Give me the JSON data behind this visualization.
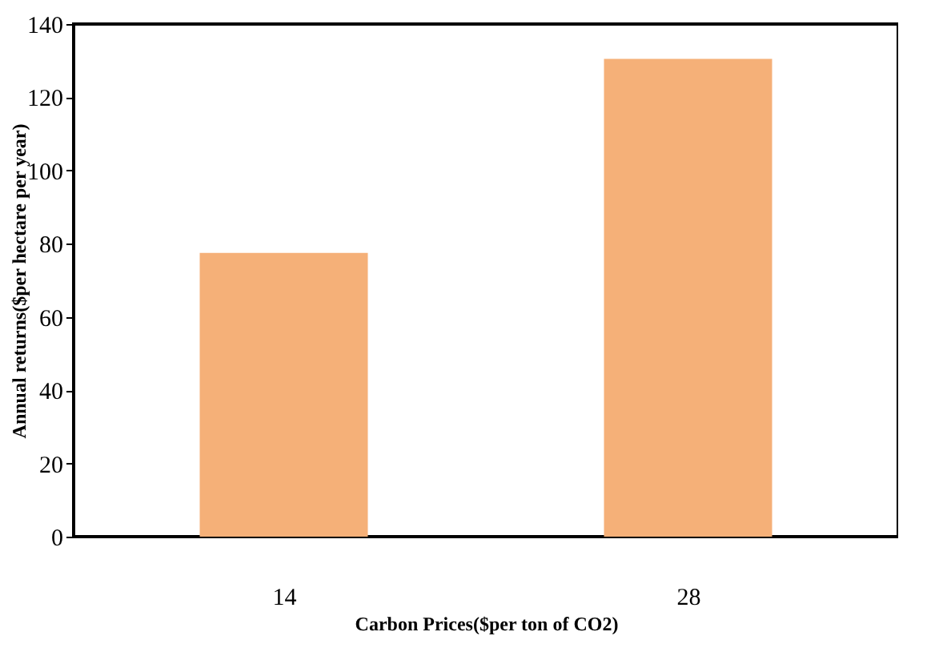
{
  "chart_data": {
    "type": "bar",
    "categories": [
      "14",
      "28"
    ],
    "values": [
      77.5,
      130.5
    ],
    "color": "#f5b078",
    "xlabel": "Carbon Prices($per ton of CO2)",
    "ylabel": "Annual returns($per hectare per year)",
    "ylim": [
      0,
      140
    ],
    "yticks": [
      0,
      20,
      40,
      60,
      80,
      100,
      120,
      140
    ],
    "grid": false
  }
}
